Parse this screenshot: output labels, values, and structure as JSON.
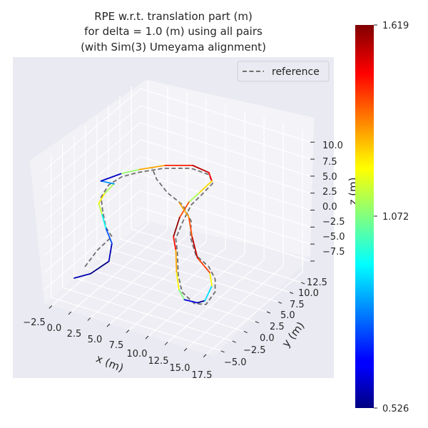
{
  "chart_data": {
    "type": "line",
    "projection": "3d",
    "title": [
      "RPE w.r.t. translation part (m)",
      "for delta = 1.0 (m) using all pairs",
      "(with Sim(3) Umeyama alignment)"
    ],
    "xlabel": "x (m)",
    "ylabel": "y (m)",
    "zlabel": "z (m)",
    "xticks": [
      "−2.5",
      "0.0",
      "2.5",
      "5.0",
      "7.5",
      "10.0",
      "12.5",
      "15.0",
      "17.5"
    ],
    "yticks": [
      "−5.0",
      "−2.5",
      "0.0",
      "2.5",
      "5.0",
      "7.5",
      "10.0",
      "12.5"
    ],
    "zticks": [
      "−7.5",
      "−5.0",
      "−2.5",
      "0.0",
      "2.5",
      "5.0",
      "7.5",
      "10.0"
    ],
    "xlim": [
      -3.5,
      18.5
    ],
    "ylim": [
      -6.5,
      14.5
    ],
    "zlim": [
      -9.5,
      11.5
    ],
    "grid": true,
    "legend": {
      "position": "top-right",
      "entries": [
        "reference"
      ]
    },
    "colorbar": {
      "colormap": "jet",
      "min": 0.526,
      "max": 1.619,
      "ticks": [
        "1.619",
        "1.072",
        "0.526"
      ]
    },
    "series": [
      {
        "name": "reference",
        "style": "dashed",
        "color": "#6f6f6f",
        "points": [
          [
            -0.3,
            -3.0,
            -5.0
          ],
          [
            1.3,
            -3.0,
            -2.0
          ],
          [
            2.3,
            -1.5,
            -0.5
          ],
          [
            1.8,
            -2.0,
            1.0
          ],
          [
            0.8,
            -1.0,
            2.5
          ],
          [
            0.3,
            -0.5,
            4.0
          ],
          [
            0.4,
            1.0,
            5.0
          ],
          [
            1.5,
            2.0,
            6.0
          ],
          [
            3.3,
            2.5,
            7.0
          ],
          [
            6.0,
            3.5,
            8.0
          ],
          [
            9.0,
            4.5,
            8.5
          ],
          [
            11.0,
            5.0,
            8.0
          ],
          [
            11.2,
            5.5,
            6.5
          ],
          [
            10.3,
            4.5,
            5.0
          ],
          [
            9.3,
            4.0,
            3.5
          ],
          [
            8.5,
            3.5,
            1.0
          ],
          [
            8.2,
            2.5,
            -1.0
          ],
          [
            8.7,
            2.0,
            -2.5
          ],
          [
            9.4,
            1.0,
            -5.0
          ],
          [
            10.2,
            0.5,
            -7.0
          ],
          [
            11.5,
            1.0,
            -8.5
          ],
          [
            12.7,
            1.5,
            -8.5
          ],
          [
            13.3,
            2.5,
            -7.0
          ],
          [
            13.0,
            3.0,
            -5.5
          ],
          [
            12.2,
            3.0,
            -4.0
          ],
          [
            10.8,
            2.5,
            -2.5
          ],
          [
            9.8,
            3.0,
            -0.5
          ],
          [
            9.6,
            3.5,
            1.5
          ],
          [
            8.5,
            3.5,
            3.5
          ],
          [
            6.8,
            3.0,
            5.0
          ],
          [
            5.4,
            3.0,
            6.5
          ],
          [
            4.8,
            3.0,
            8.0
          ]
        ]
      },
      {
        "name": "",
        "style": "solid",
        "colormap_values": [
          0.58,
          0.53,
          0.58,
          0.75,
          0.95,
          1.15,
          1.22,
          1.12,
          0.82,
          0.6,
          1.1,
          1.3,
          1.45,
          1.55,
          1.48,
          1.25,
          1.12,
          1.4,
          1.6,
          1.47,
          1.3,
          1.22,
          1.08,
          0.62,
          0.55,
          0.9,
          1.22,
          1.42,
          1.55,
          1.4,
          1.3
        ],
        "points": [
          [
            -0.8,
            -4.5,
            -6.0
          ],
          [
            1.0,
            -4.0,
            -5.0
          ],
          [
            2.5,
            -2.5,
            -3.5
          ],
          [
            2.3,
            -1.5,
            -1.5
          ],
          [
            1.5,
            -1.5,
            0.5
          ],
          [
            0.7,
            -1.0,
            2.0
          ],
          [
            0.0,
            -0.5,
            3.0
          ],
          [
            0.2,
            0.5,
            4.0
          ],
          [
            0.8,
            1.5,
            5.0
          ],
          [
            0.0,
            0.0,
            6.0
          ],
          [
            1.5,
            2.0,
            6.5
          ],
          [
            3.5,
            2.5,
            7.5
          ],
          [
            6.2,
            3.5,
            8.5
          ],
          [
            9.2,
            4.5,
            9.0
          ],
          [
            11.0,
            5.0,
            8.3
          ],
          [
            11.1,
            5.5,
            6.8
          ],
          [
            10.0,
            4.5,
            5.2
          ],
          [
            9.0,
            4.0,
            3.8
          ],
          [
            8.1,
            3.5,
            1.5
          ],
          [
            7.9,
            2.5,
            -0.8
          ],
          [
            8.5,
            2.0,
            -2.3
          ],
          [
            9.2,
            1.0,
            -4.8
          ],
          [
            9.8,
            0.5,
            -6.8
          ],
          [
            10.5,
            0.5,
            -8.0
          ],
          [
            11.8,
            1.2,
            -8.4
          ],
          [
            12.4,
            1.8,
            -8.2
          ],
          [
            12.7,
            2.8,
            -6.5
          ],
          [
            12.3,
            3.0,
            -4.8
          ],
          [
            11.0,
            2.5,
            -2.8
          ],
          [
            10.0,
            3.0,
            -0.3
          ],
          [
            9.3,
            3.5,
            2.0
          ],
          [
            8.2,
            3.3,
            3.8
          ]
        ]
      }
    ]
  }
}
